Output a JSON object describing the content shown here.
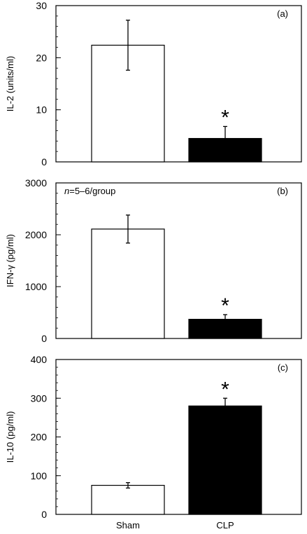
{
  "chart_data": [
    {
      "type": "bar",
      "panel_label": "(a)",
      "ylabel": "IL-2 (units/ml)",
      "ylim": [
        0,
        30
      ],
      "yticks": [
        0,
        10,
        20,
        30
      ],
      "minor_step": 2,
      "categories": [
        "Sham",
        "CLP"
      ],
      "series": [
        {
          "values": [
            22.4,
            4.5
          ],
          "errors": [
            4.8,
            2.3
          ]
        }
      ],
      "bar_colors": [
        "#ffffff",
        "#000000"
      ],
      "significance": [
        "",
        "*"
      ],
      "note": ""
    },
    {
      "type": "bar",
      "panel_label": "(b)",
      "ylabel": "IFN-γ (pg/ml)",
      "ylim": [
        0,
        3000
      ],
      "yticks": [
        0,
        1000,
        2000,
        3000
      ],
      "minor_step": 200,
      "categories": [
        "Sham",
        "CLP"
      ],
      "series": [
        {
          "values": [
            2110,
            370
          ],
          "errors": [
            270,
            90
          ]
        }
      ],
      "bar_colors": [
        "#ffffff",
        "#000000"
      ],
      "significance": [
        "",
        "*"
      ],
      "note_italic": "n",
      "note": "=5–6/group"
    },
    {
      "type": "bar",
      "panel_label": "(c)",
      "ylabel": "IL-10 (pg/ml)",
      "ylim": [
        0,
        400
      ],
      "yticks": [
        0,
        100,
        200,
        300,
        400
      ],
      "minor_step": 20,
      "categories": [
        "Sham",
        "CLP"
      ],
      "series": [
        {
          "values": [
            75,
            280
          ],
          "errors": [
            7,
            20
          ]
        }
      ],
      "bar_colors": [
        "#ffffff",
        "#000000"
      ],
      "significance": [
        "",
        "*"
      ],
      "note": ""
    }
  ],
  "x_labels": [
    "Sham",
    "CLP"
  ]
}
